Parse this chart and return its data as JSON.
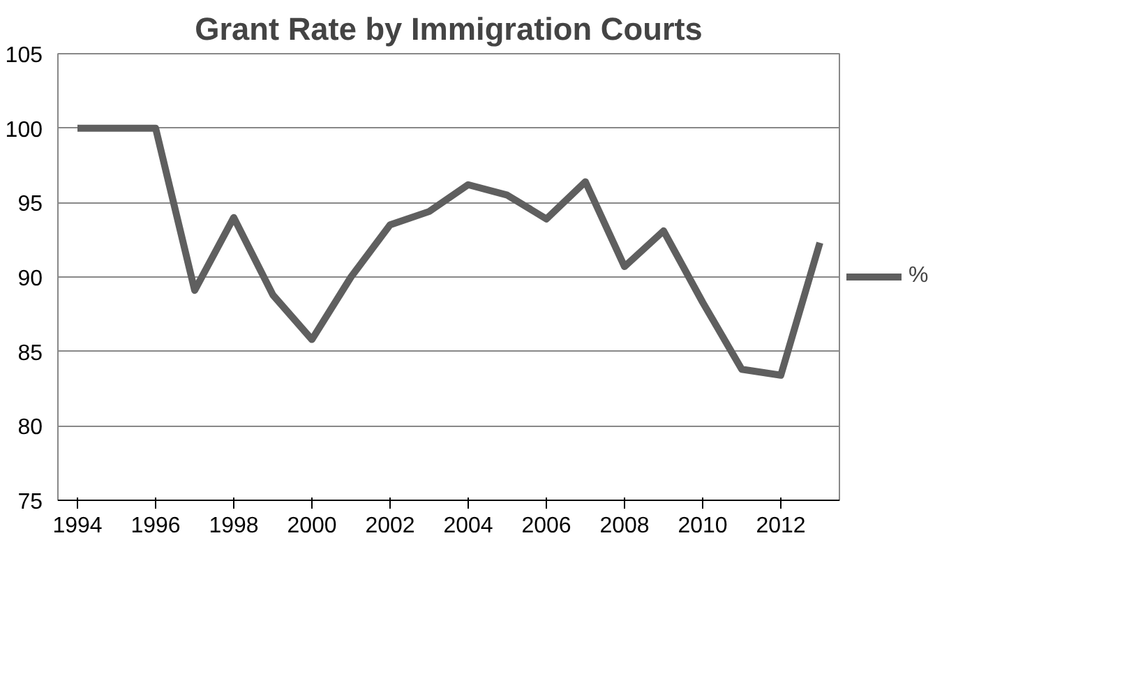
{
  "chart_data": {
    "type": "line",
    "title": "Grant Rate by Immigration Courts",
    "categories": [
      "1994",
      null,
      "1996",
      null,
      "1998",
      null,
      "2000",
      null,
      "2002",
      null,
      "2004",
      null,
      "2006",
      null,
      "2008",
      null,
      "2010",
      null,
      "2012",
      null
    ],
    "series": [
      {
        "name": "%",
        "color": "#5f5f5f",
        "values": [
          100,
          100,
          100,
          89.1,
          94,
          88.8,
          85.8,
          90,
          93.5,
          94.4,
          96.2,
          95.5,
          93.9,
          96.4,
          90.7,
          93.1,
          88.3,
          83.8,
          83.4,
          92.3
        ]
      }
    ],
    "ylim": [
      75,
      105
    ],
    "yticks": [
      75,
      80,
      85,
      90,
      95,
      100,
      105
    ],
    "grid": "y",
    "legend": "right",
    "marker": "none",
    "line_style": "solid"
  }
}
